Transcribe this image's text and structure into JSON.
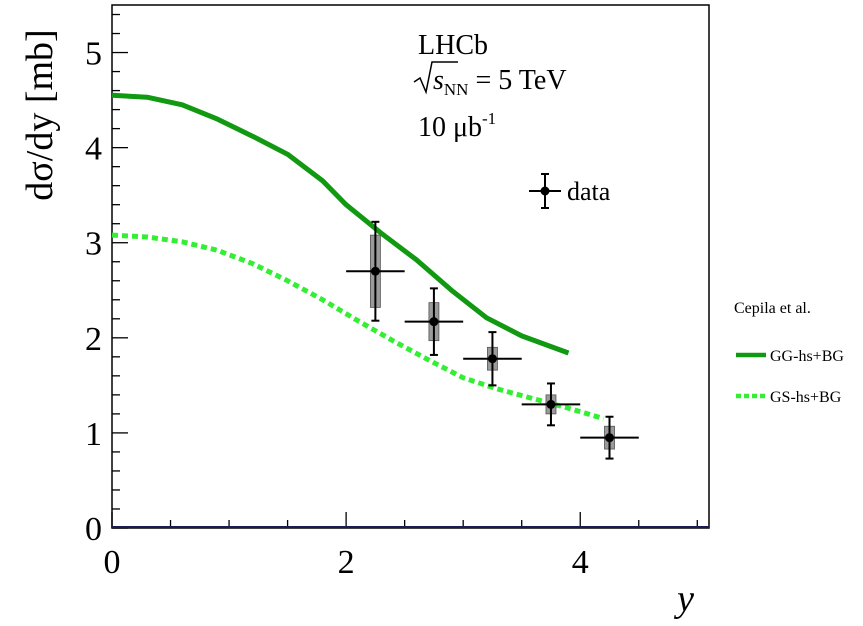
{
  "chart_data": {
    "type": "line",
    "title": "",
    "xlabel": "y",
    "ylabel": "dσ/dy [mb]",
    "xlim": [
      0,
      5.1
    ],
    "ylim": [
      0,
      5.5
    ],
    "x_ticks": [
      0,
      2,
      4
    ],
    "y_ticks": [
      0,
      1,
      2,
      3,
      4,
      5
    ],
    "x_tick_labels": [
      "0",
      "2",
      "4"
    ],
    "y_tick_labels": [
      "0",
      "1",
      "2",
      "3",
      "4",
      "5"
    ],
    "grid": false,
    "annotations": {
      "experiment": "LHCb",
      "energy_sqrt": "s",
      "energy_sub": "NN",
      "energy_rest": " = 5 TeV",
      "lumi_main": "10 μb",
      "lumi_sup": "-1"
    },
    "series": [
      {
        "name": "data",
        "kind": "points",
        "color": "#000000",
        "points": [
          {
            "x": 2.25,
            "y": 2.7,
            "xerr": 0.25,
            "stat": 0.52,
            "sys": 0.38
          },
          {
            "x": 2.75,
            "y": 2.17,
            "xerr": 0.25,
            "stat": 0.35,
            "sys": 0.2
          },
          {
            "x": 3.25,
            "y": 1.78,
            "xerr": 0.25,
            "stat": 0.28,
            "sys": 0.12
          },
          {
            "x": 3.75,
            "y": 1.3,
            "xerr": 0.25,
            "stat": 0.22,
            "sys": 0.1
          },
          {
            "x": 4.25,
            "y": 0.95,
            "xerr": 0.25,
            "stat": 0.22,
            "sys": 0.12
          }
        ]
      },
      {
        "name": "GG-hs+BG",
        "kind": "line",
        "color": "#119911",
        "style": "solid",
        "x": [
          0,
          0.3,
          0.6,
          0.9,
          1.2,
          1.5,
          1.8,
          2.0,
          2.3,
          2.6,
          2.9,
          3.2,
          3.5,
          3.9
        ],
        "y": [
          4.55,
          4.53,
          4.45,
          4.3,
          4.12,
          3.93,
          3.65,
          3.4,
          3.1,
          2.82,
          2.5,
          2.21,
          2.02,
          1.84
        ]
      },
      {
        "name": "GS-hs+BG",
        "kind": "line",
        "color": "#33ee33",
        "style": "dashed",
        "x": [
          0,
          0.3,
          0.6,
          0.9,
          1.2,
          1.5,
          1.8,
          2.1,
          2.4,
          2.7,
          3.0,
          3.3,
          3.6,
          3.9,
          4.2
        ],
        "y": [
          3.08,
          3.06,
          3.01,
          2.92,
          2.78,
          2.6,
          2.4,
          2.18,
          1.97,
          1.77,
          1.58,
          1.46,
          1.36,
          1.26,
          1.15
        ]
      }
    ],
    "legend_header": "Cepila et al.",
    "legend_main_placement": "top-right inside plot",
    "legend_models_placement": "right outside plot"
  }
}
